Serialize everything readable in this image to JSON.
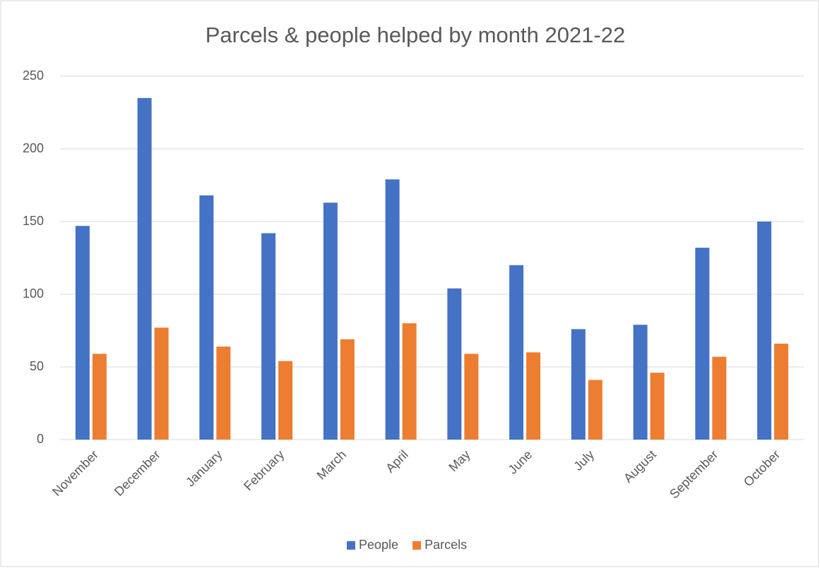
{
  "chart_data": {
    "type": "bar",
    "title": "Parcels & people helped by month 2021-22",
    "categories": [
      "November",
      "December",
      "January",
      "February",
      "March",
      "April",
      "May",
      "June",
      "July",
      "August",
      "September",
      "October"
    ],
    "series": [
      {
        "name": "People",
        "color": "#4472c4",
        "values": [
          147,
          235,
          168,
          142,
          163,
          179,
          104,
          120,
          76,
          79,
          132,
          150
        ]
      },
      {
        "name": "Parcels",
        "color": "#ed7d31",
        "values": [
          59,
          77,
          64,
          54,
          69,
          80,
          59,
          60,
          41,
          46,
          57,
          66
        ]
      }
    ],
    "ylim": [
      0,
      250
    ],
    "yticks": [
      0,
      50,
      100,
      150,
      200,
      250
    ],
    "grid": true,
    "legend": "bottom"
  }
}
